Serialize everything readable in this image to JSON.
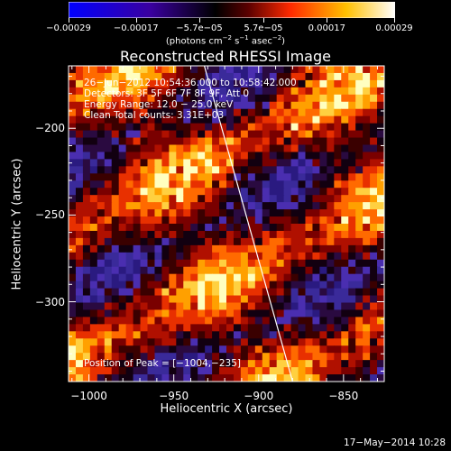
{
  "colorbar": {
    "tick_labels": [
      "−0.00029",
      "−0.00017",
      "−5.7e−05",
      "5.7e−05",
      "0.00017",
      "0.00029"
    ],
    "tick_values": [
      -0.00029,
      -0.00017,
      -5.7e-05,
      5.7e-05,
      0.00017,
      0.00029
    ],
    "units_prefix": "(photons cm",
    "units_exp1": "−2",
    "units_mid1": " s",
    "units_exp2": "−1",
    "units_mid2": " asec",
    "units_exp3": "−2",
    "units_suffix": ")",
    "colors": [
      "#0000ff",
      "#2a00a0",
      "#000000",
      "#8a0000",
      "#ff3a00",
      "#ffb000",
      "#ffffff"
    ]
  },
  "title": "Reconstructed RHESSI Image",
  "info": {
    "time": "26−Jun−2012 10:54:36.000 to 10:58:42.000",
    "detectors": "Detectors: 3F 5F 6F 7F 8F 9F, Att 0",
    "energy": "Energy Range: 12.0 − 25.0 keV",
    "clean": "Clean     Total counts: 3.31E+03",
    "peak": "Position of Peak = [−1004,−235]"
  },
  "footer": {
    "date": "17−May−2014 10:28"
  },
  "chart_data": {
    "type": "heatmap",
    "title": "Reconstructed RHESSI Image",
    "xlabel": "Heliocentric X (arcsec)",
    "ylabel": "Heliocentric Y (arcsec)",
    "xlim": [
      -1012,
      -826
    ],
    "ylim": [
      -346,
      -164
    ],
    "x_ticks": [
      -1000,
      -950,
      -900,
      -850
    ],
    "x_tick_labels": [
      "−1000",
      "−950",
      "−900",
      "−850"
    ],
    "y_ticks": [
      -200,
      -250,
      -300
    ],
    "y_tick_labels": [
      "−200",
      "−250",
      "−300"
    ],
    "limb_line": [
      [
        -932,
        -164
      ],
      [
        -880,
        -346
      ]
    ],
    "peak": [
      -1004,
      -235
    ],
    "colorbar_range": [
      -0.00029,
      0.00029
    ],
    "grid": false
  }
}
